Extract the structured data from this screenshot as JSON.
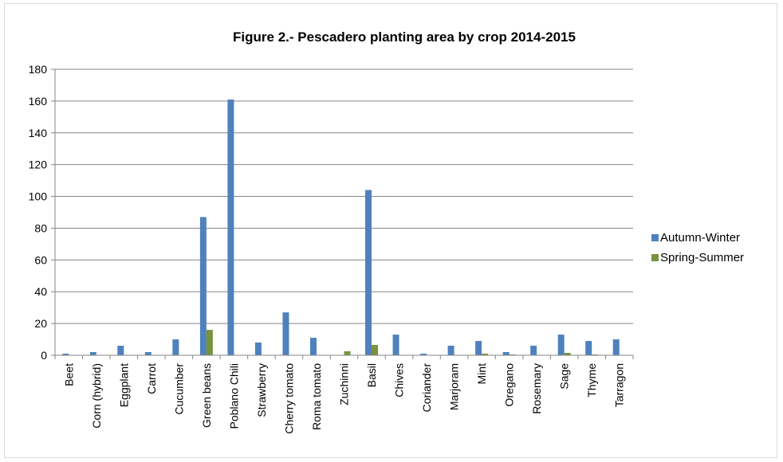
{
  "chart_data": {
    "type": "bar",
    "title": "Figure 2.- Pescadero planting area by crop 2014-2015",
    "xlabel": "",
    "ylabel": "",
    "ylim": [
      0,
      180
    ],
    "yticks": [
      0,
      20,
      40,
      60,
      80,
      100,
      120,
      140,
      160,
      180
    ],
    "grid": true,
    "legend_position": "right",
    "categories": [
      "Beet",
      "Corn (hybrid)",
      "Eggplant",
      "Carrot",
      "Cucumber",
      "Green beans",
      "Poblano Chili",
      "Strawberry",
      "Cherry tomato",
      "Roma tomato",
      "Zuchinni",
      "Basil",
      "Chives",
      "Coriander",
      "Marjoram",
      "Mint",
      "Oregano",
      "Rosemary",
      "Sage",
      "Thyme",
      "Tarragon"
    ],
    "series": [
      {
        "name": "Autumn-Winter",
        "color": "#4f81bd",
        "values": [
          1,
          2,
          6,
          2,
          10,
          87,
          161,
          8,
          27,
          11,
          0,
          104,
          13,
          1,
          6,
          9,
          2,
          6,
          13,
          9,
          10
        ]
      },
      {
        "name": "Spring-Summer",
        "color": "#77933c",
        "values": [
          0,
          0,
          0,
          0,
          0,
          16,
          0,
          0,
          0,
          0,
          2.5,
          6.5,
          0,
          0,
          0,
          1,
          0.5,
          0,
          1.5,
          0.5,
          0
        ]
      }
    ]
  }
}
